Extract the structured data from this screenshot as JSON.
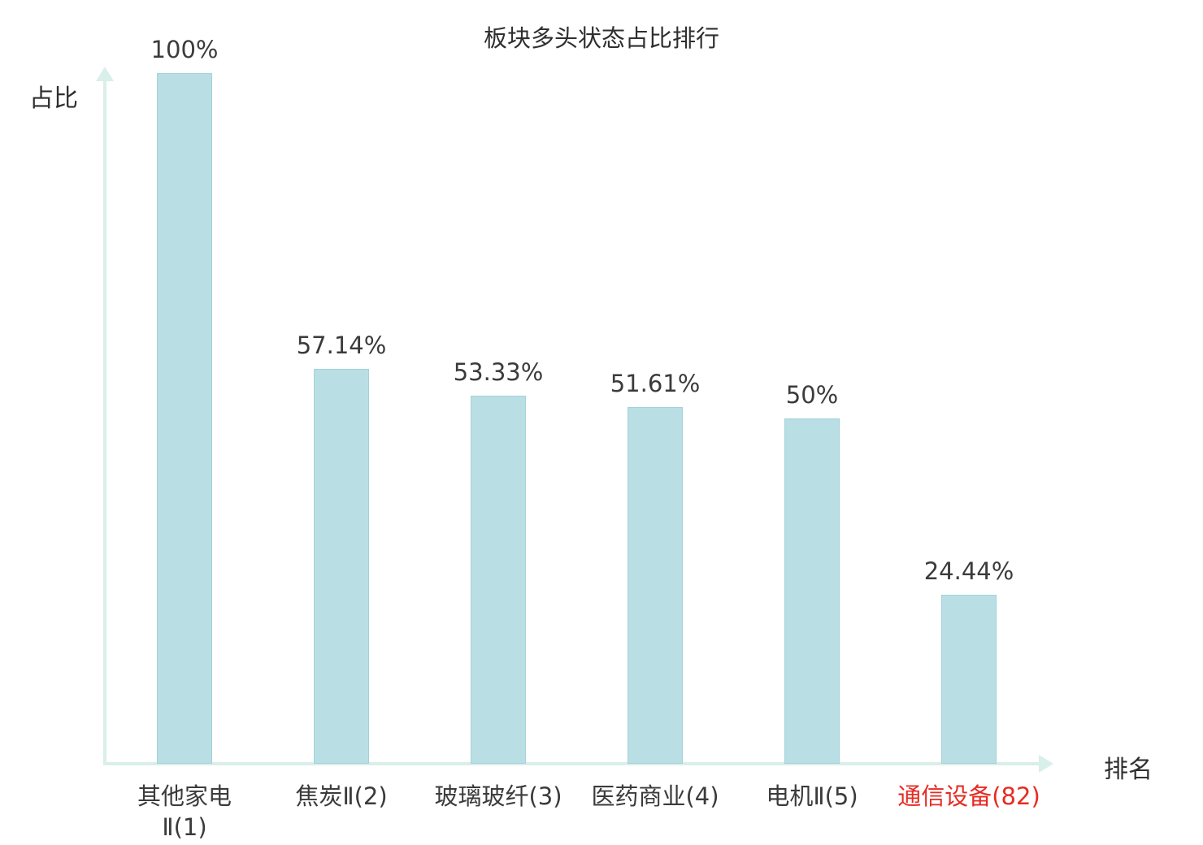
{
  "title": "板块多头状态占比排行",
  "colors": {
    "bar_fill": "#b9dfe4",
    "bar_border": "#a3d2d9",
    "axis": "#d9efe9",
    "text": "#3b3b3b",
    "highlight": "#e62b22"
  },
  "chart_data": {
    "type": "bar",
    "title": "板块多头状态占比排行",
    "xlabel": "排名",
    "ylabel": "占比",
    "ylim": [
      0,
      100
    ],
    "grid": false,
    "legend": false,
    "categories": [
      "其他家电Ⅱ(1)",
      "焦炭Ⅱ(2)",
      "玻璃玻纤(3)",
      "医药商业(4)",
      "电机Ⅱ(5)",
      "通信设备(82)"
    ],
    "categories_display": [
      [
        "其他家电",
        "Ⅱ(1)"
      ],
      [
        "焦炭Ⅱ(2)"
      ],
      [
        "玻璃玻纤(3)"
      ],
      [
        "医药商业(4)"
      ],
      [
        "电机Ⅱ(5)"
      ],
      [
        "通信设备(82)"
      ]
    ],
    "values": [
      100,
      57.14,
      53.33,
      51.61,
      50,
      24.44
    ],
    "value_labels": [
      "100%",
      "57.14%",
      "53.33%",
      "51.61%",
      "50%",
      "24.44%"
    ],
    "highlight_index": 5
  }
}
